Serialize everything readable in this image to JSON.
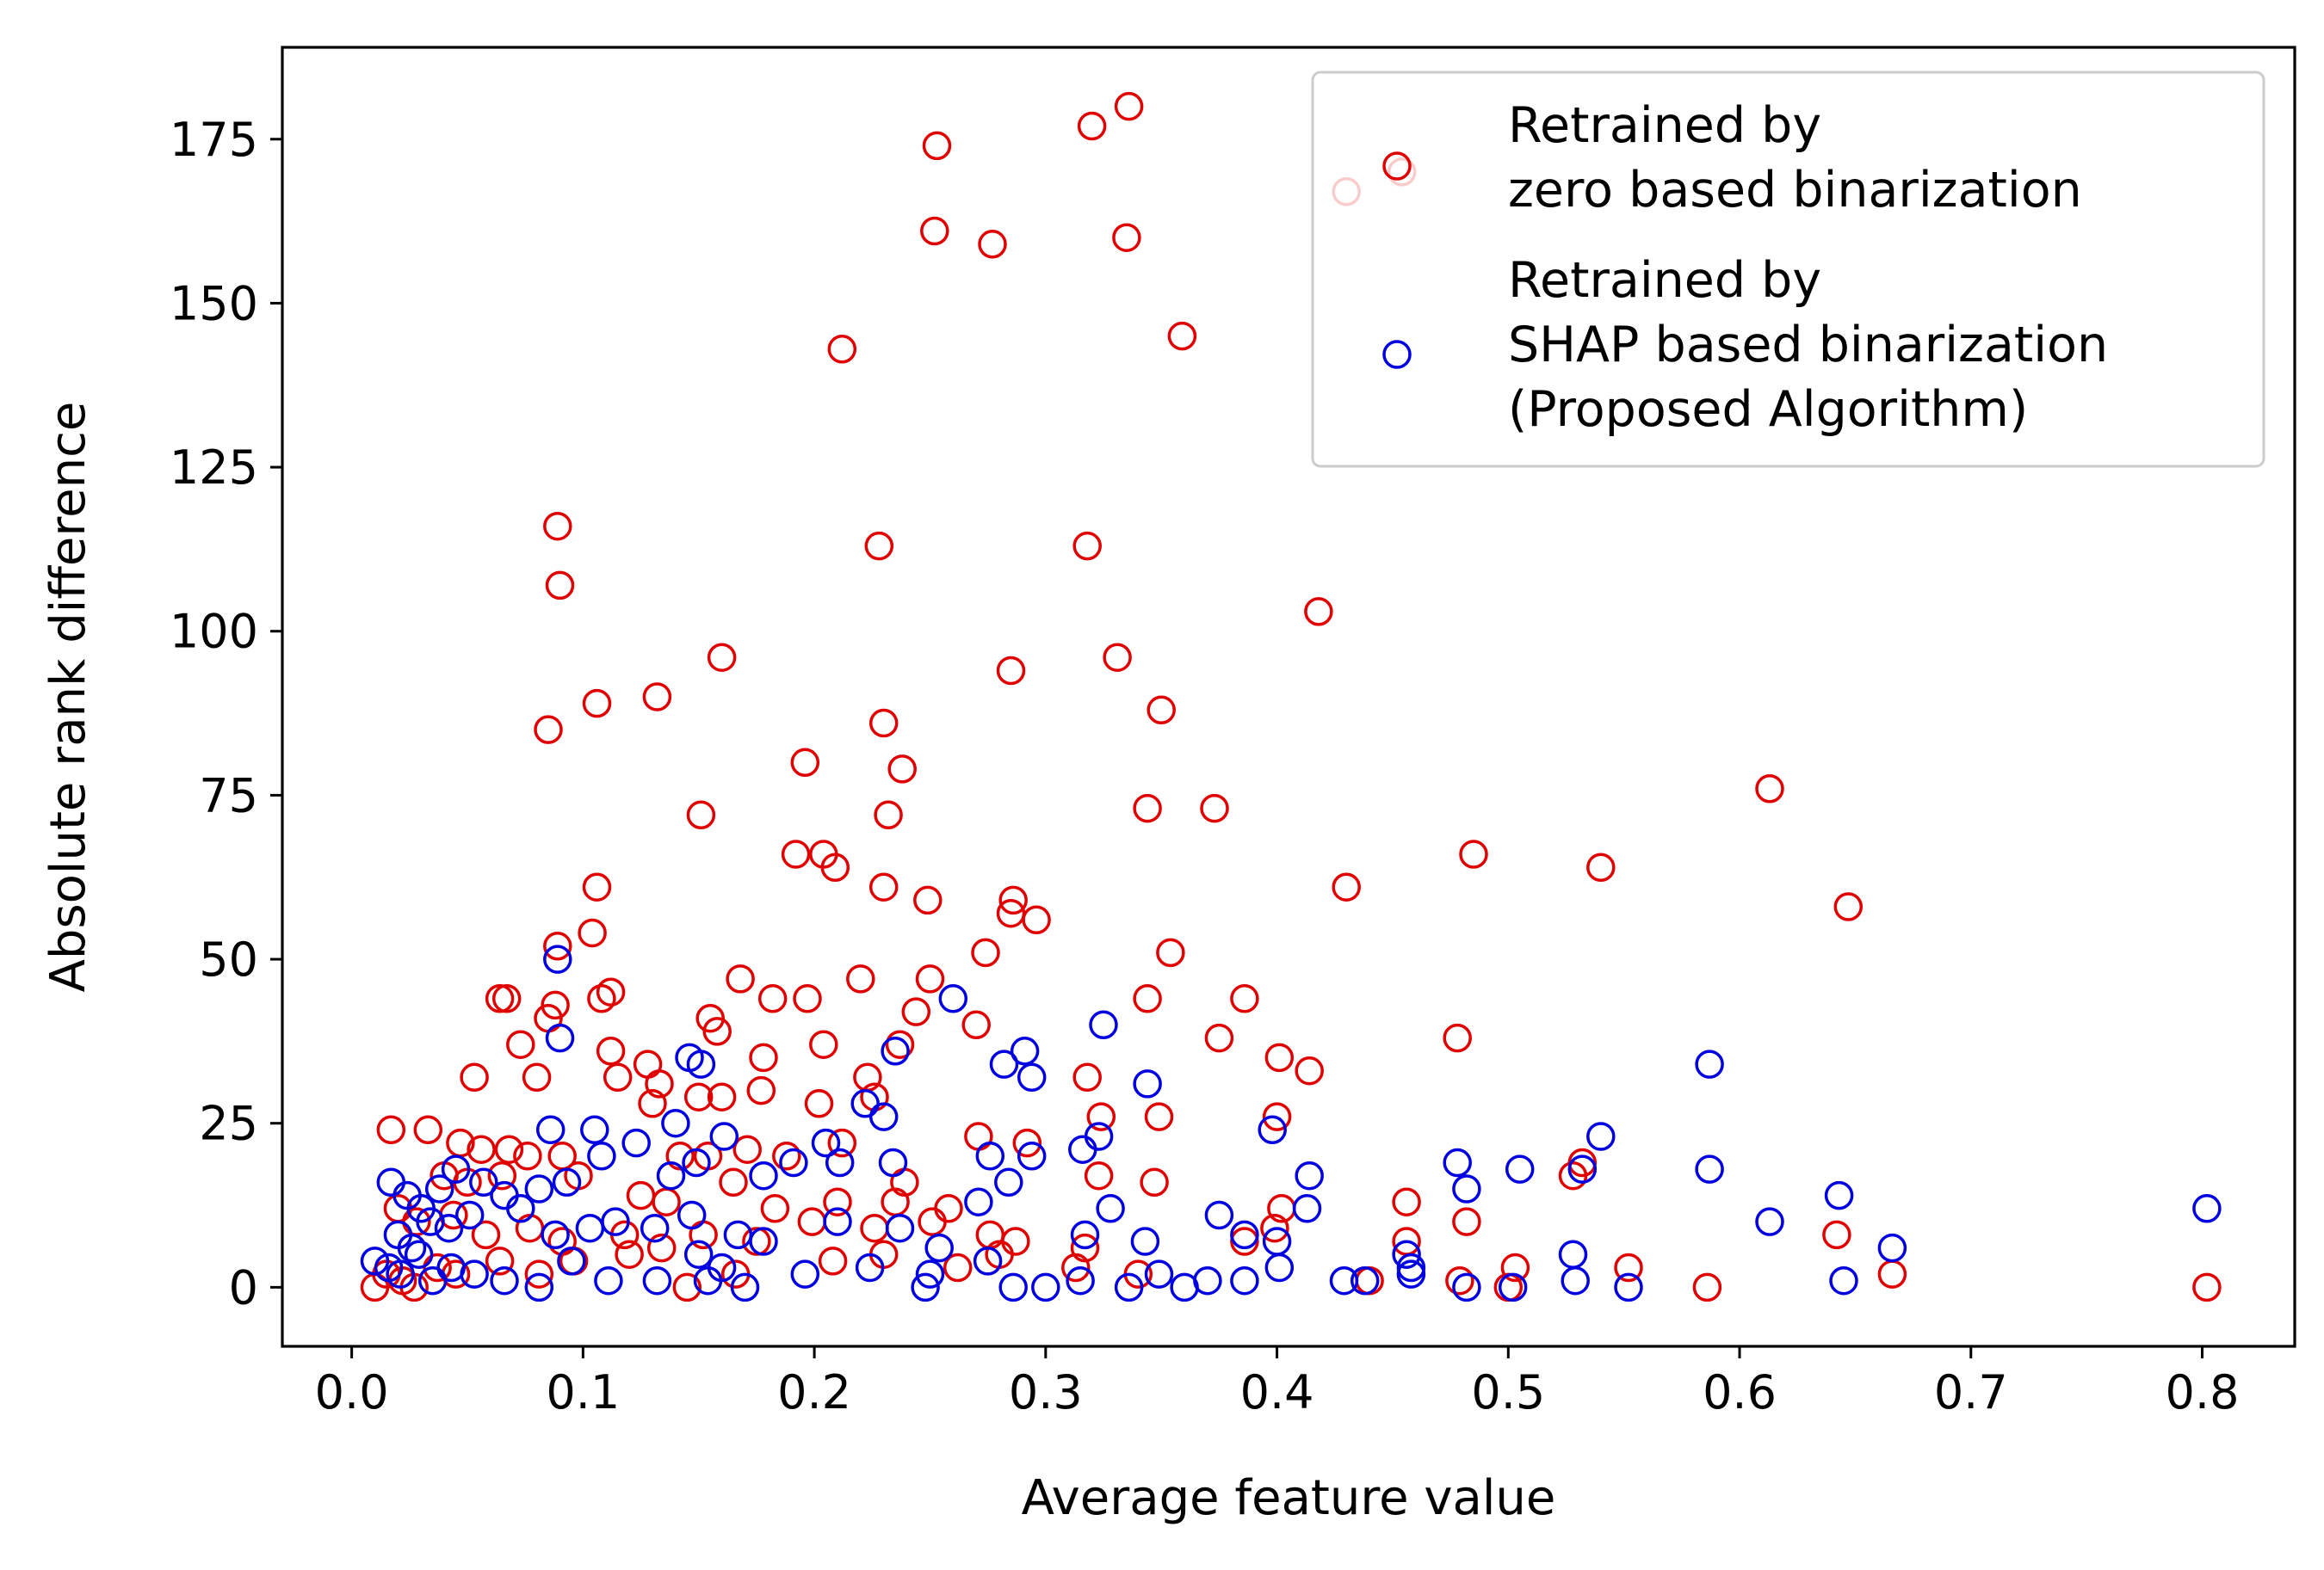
{
  "chart_data": {
    "type": "scatter",
    "title": "",
    "xlabel": "Average feature value",
    "ylabel": "Absolute rank difference",
    "xlim": [
      -0.03,
      0.84
    ],
    "ylim": [
      -9,
      189
    ],
    "xticks": [
      0.0,
      0.1,
      0.2,
      0.3,
      0.4,
      0.5,
      0.6,
      0.7,
      0.8
    ],
    "xtick_labels": [
      "0.0",
      "0.1",
      "0.2",
      "0.3",
      "0.4",
      "0.5",
      "0.6",
      "0.7",
      "0.8"
    ],
    "yticks": [
      0,
      25,
      50,
      75,
      100,
      125,
      150,
      175
    ],
    "ytick_labels": [
      "0",
      "25",
      "50",
      "75",
      "100",
      "125",
      "150",
      "175"
    ],
    "grid": false,
    "legend_position": "top-right",
    "series": [
      {
        "name": "zero",
        "legend_lines": [
          "Retrained by",
          "zero based binarization"
        ],
        "color": "#e00000",
        "marker": "hollow-circle",
        "points": [
          [
            0.253,
            174
          ],
          [
            0.32,
            177
          ],
          [
            0.336,
            180
          ],
          [
            0.252,
            161
          ],
          [
            0.277,
            159
          ],
          [
            0.335,
            160
          ],
          [
            0.359,
            145
          ],
          [
            0.212,
            143
          ],
          [
            0.454,
            170
          ],
          [
            0.43,
            167
          ],
          [
            0.089,
            116
          ],
          [
            0.09,
            107
          ],
          [
            0.228,
            113
          ],
          [
            0.318,
            113
          ],
          [
            0.418,
            103
          ],
          [
            0.16,
            96
          ],
          [
            0.331,
            96
          ],
          [
            0.285,
            94
          ],
          [
            0.132,
            90
          ],
          [
            0.106,
            89
          ],
          [
            0.35,
            88
          ],
          [
            0.085,
            85
          ],
          [
            0.23,
            86
          ],
          [
            0.196,
            80
          ],
          [
            0.238,
            79
          ],
          [
            0.613,
            76
          ],
          [
            0.151,
            72
          ],
          [
            0.232,
            72
          ],
          [
            0.344,
            73
          ],
          [
            0.373,
            73
          ],
          [
            0.192,
            66
          ],
          [
            0.204,
            66
          ],
          [
            0.209,
            64
          ],
          [
            0.485,
            66
          ],
          [
            0.54,
            64
          ],
          [
            0.106,
            61
          ],
          [
            0.23,
            61
          ],
          [
            0.43,
            61
          ],
          [
            0.647,
            58
          ],
          [
            0.286,
            59
          ],
          [
            0.249,
            59
          ],
          [
            0.104,
            54
          ],
          [
            0.285,
            57
          ],
          [
            0.296,
            56
          ],
          [
            0.089,
            52
          ],
          [
            0.274,
            51
          ],
          [
            0.354,
            51
          ],
          [
            0.064,
            44
          ],
          [
            0.067,
            44
          ],
          [
            0.088,
            43
          ],
          [
            0.108,
            44
          ],
          [
            0.112,
            45
          ],
          [
            0.168,
            47
          ],
          [
            0.182,
            44
          ],
          [
            0.197,
            44
          ],
          [
            0.22,
            47
          ],
          [
            0.25,
            47
          ],
          [
            0.344,
            44
          ],
          [
            0.386,
            44
          ],
          [
            0.085,
            41
          ],
          [
            0.155,
            41
          ],
          [
            0.158,
            39
          ],
          [
            0.244,
            42
          ],
          [
            0.27,
            40
          ],
          [
            0.073,
            37
          ],
          [
            0.08,
            32
          ],
          [
            0.112,
            36
          ],
          [
            0.115,
            32
          ],
          [
            0.128,
            34
          ],
          [
            0.133,
            31
          ],
          [
            0.178,
            35
          ],
          [
            0.177,
            30
          ],
          [
            0.204,
            37
          ],
          [
            0.223,
            32
          ],
          [
            0.237,
            37
          ],
          [
            0.053,
            32
          ],
          [
            0.13,
            28
          ],
          [
            0.15,
            29
          ],
          [
            0.16,
            29
          ],
          [
            0.202,
            28
          ],
          [
            0.226,
            29
          ],
          [
            0.318,
            32
          ],
          [
            0.375,
            38
          ],
          [
            0.401,
            35
          ],
          [
            0.414,
            33
          ],
          [
            0.478,
            38
          ],
          [
            0.017,
            24
          ],
          [
            0.033,
            24
          ],
          [
            0.047,
            22
          ],
          [
            0.056,
            21
          ],
          [
            0.068,
            21
          ],
          [
            0.076,
            20
          ],
          [
            0.091,
            20
          ],
          [
            0.142,
            20
          ],
          [
            0.154,
            20
          ],
          [
            0.171,
            21
          ],
          [
            0.188,
            20
          ],
          [
            0.212,
            22
          ],
          [
            0.271,
            23
          ],
          [
            0.292,
            22
          ],
          [
            0.324,
            26
          ],
          [
            0.349,
            26
          ],
          [
            0.4,
            26
          ],
          [
            0.04,
            17
          ],
          [
            0.05,
            16
          ],
          [
            0.065,
            17
          ],
          [
            0.098,
            17
          ],
          [
            0.125,
            14
          ],
          [
            0.136,
            13
          ],
          [
            0.165,
            16
          ],
          [
            0.183,
            12
          ],
          [
            0.21,
            13
          ],
          [
            0.239,
            16
          ],
          [
            0.235,
            13
          ],
          [
            0.258,
            12
          ],
          [
            0.323,
            17
          ],
          [
            0.347,
            16
          ],
          [
            0.402,
            12
          ],
          [
            0.456,
            13
          ],
          [
            0.482,
            10
          ],
          [
            0.528,
            17
          ],
          [
            0.532,
            19
          ],
          [
            0.02,
            12
          ],
          [
            0.028,
            10
          ],
          [
            0.044,
            11
          ],
          [
            0.058,
            8
          ],
          [
            0.077,
            9
          ],
          [
            0.091,
            7
          ],
          [
            0.118,
            8
          ],
          [
            0.134,
            6
          ],
          [
            0.152,
            8
          ],
          [
            0.175,
            7
          ],
          [
            0.199,
            10
          ],
          [
            0.226,
            9
          ],
          [
            0.251,
            10
          ],
          [
            0.276,
            8
          ],
          [
            0.287,
            7
          ],
          [
            0.317,
            6
          ],
          [
            0.386,
            7
          ],
          [
            0.399,
            9
          ],
          [
            0.456,
            7
          ],
          [
            0.642,
            8
          ],
          [
            0.01,
            0
          ],
          [
            0.015,
            2
          ],
          [
            0.022,
            1
          ],
          [
            0.027,
            0
          ],
          [
            0.037,
            3
          ],
          [
            0.045,
            2
          ],
          [
            0.064,
            4
          ],
          [
            0.081,
            2
          ],
          [
            0.096,
            4
          ],
          [
            0.12,
            5
          ],
          [
            0.145,
            0
          ],
          [
            0.166,
            2
          ],
          [
            0.208,
            4
          ],
          [
            0.262,
            3
          ],
          [
            0.313,
            3
          ],
          [
            0.479,
            1
          ],
          [
            0.503,
            3
          ],
          [
            0.552,
            3
          ],
          [
            0.586,
            0
          ],
          [
            0.666,
            2
          ],
          [
            0.802,
            0
          ],
          [
            0.5,
            0
          ],
          [
            0.44,
            1
          ],
          [
            0.34,
            2
          ],
          [
            0.28,
            5
          ],
          [
            0.23,
            5
          ]
        ]
      },
      {
        "name": "shap",
        "legend_lines": [
          "Retrained by",
          "SHAP based binarization",
          "(Proposed Algorithm)"
        ],
        "color": "#0000e0",
        "marker": "hollow-circle",
        "points": [
          [
            0.089,
            50
          ],
          [
            0.09,
            38
          ],
          [
            0.26,
            44
          ],
          [
            0.146,
            35
          ],
          [
            0.151,
            34
          ],
          [
            0.235,
            36
          ],
          [
            0.282,
            34
          ],
          [
            0.291,
            36
          ],
          [
            0.294,
            32
          ],
          [
            0.325,
            40
          ],
          [
            0.344,
            31
          ],
          [
            0.587,
            34
          ],
          [
            0.086,
            24
          ],
          [
            0.105,
            24
          ],
          [
            0.14,
            25
          ],
          [
            0.222,
            28
          ],
          [
            0.23,
            26
          ],
          [
            0.398,
            24
          ],
          [
            0.54,
            23
          ],
          [
            0.017,
            16
          ],
          [
            0.024,
            14
          ],
          [
            0.03,
            12
          ],
          [
            0.038,
            15
          ],
          [
            0.045,
            18
          ],
          [
            0.057,
            16
          ],
          [
            0.066,
            14
          ],
          [
            0.081,
            15
          ],
          [
            0.093,
            16
          ],
          [
            0.108,
            20
          ],
          [
            0.123,
            22
          ],
          [
            0.138,
            17
          ],
          [
            0.149,
            19
          ],
          [
            0.161,
            23
          ],
          [
            0.178,
            17
          ],
          [
            0.191,
            19
          ],
          [
            0.205,
            22
          ],
          [
            0.211,
            19
          ],
          [
            0.234,
            19
          ],
          [
            0.276,
            20
          ],
          [
            0.284,
            16
          ],
          [
            0.294,
            20
          ],
          [
            0.316,
            21
          ],
          [
            0.323,
            23
          ],
          [
            0.375,
            11
          ],
          [
            0.414,
            17
          ],
          [
            0.478,
            19
          ],
          [
            0.482,
            15
          ],
          [
            0.505,
            18
          ],
          [
            0.532,
            18
          ],
          [
            0.587,
            18
          ],
          [
            0.613,
            10
          ],
          [
            0.643,
            14
          ],
          [
            0.802,
            12
          ],
          [
            0.02,
            8
          ],
          [
            0.026,
            6
          ],
          [
            0.034,
            10
          ],
          [
            0.042,
            9
          ],
          [
            0.051,
            11
          ],
          [
            0.073,
            12
          ],
          [
            0.088,
            8
          ],
          [
            0.103,
            9
          ],
          [
            0.114,
            10
          ],
          [
            0.131,
            9
          ],
          [
            0.147,
            11
          ],
          [
            0.167,
            8
          ],
          [
            0.178,
            7
          ],
          [
            0.21,
            10
          ],
          [
            0.237,
            9
          ],
          [
            0.254,
            6
          ],
          [
            0.271,
            13
          ],
          [
            0.317,
            8
          ],
          [
            0.328,
            12
          ],
          [
            0.343,
            7
          ],
          [
            0.386,
            8
          ],
          [
            0.4,
            7
          ],
          [
            0.413,
            12
          ],
          [
            0.456,
            5
          ],
          [
            0.458,
            3
          ],
          [
            0.528,
            5
          ],
          [
            0.666,
            6
          ],
          [
            0.01,
            4
          ],
          [
            0.016,
            3
          ],
          [
            0.021,
            2
          ],
          [
            0.029,
            5
          ],
          [
            0.035,
            1
          ],
          [
            0.043,
            3
          ],
          [
            0.053,
            2
          ],
          [
            0.066,
            1
          ],
          [
            0.081,
            0
          ],
          [
            0.095,
            4
          ],
          [
            0.111,
            1
          ],
          [
            0.132,
            1
          ],
          [
            0.154,
            1
          ],
          [
            0.17,
            0
          ],
          [
            0.196,
            2
          ],
          [
            0.224,
            3
          ],
          [
            0.248,
            0
          ],
          [
            0.275,
            4
          ],
          [
            0.286,
            0
          ],
          [
            0.315,
            1
          ],
          [
            0.336,
            0
          ],
          [
            0.349,
            2
          ],
          [
            0.37,
            1
          ],
          [
            0.386,
            1
          ],
          [
            0.401,
            3
          ],
          [
            0.429,
            1
          ],
          [
            0.438,
            1
          ],
          [
            0.482,
            0
          ],
          [
            0.502,
            0
          ],
          [
            0.529,
            1
          ],
          [
            0.552,
            0
          ],
          [
            0.645,
            1
          ],
          [
            0.15,
            5
          ],
          [
            0.16,
            3
          ],
          [
            0.25,
            2
          ],
          [
            0.3,
            0
          ],
          [
            0.36,
            0
          ],
          [
            0.458,
            2
          ]
        ]
      }
    ]
  }
}
